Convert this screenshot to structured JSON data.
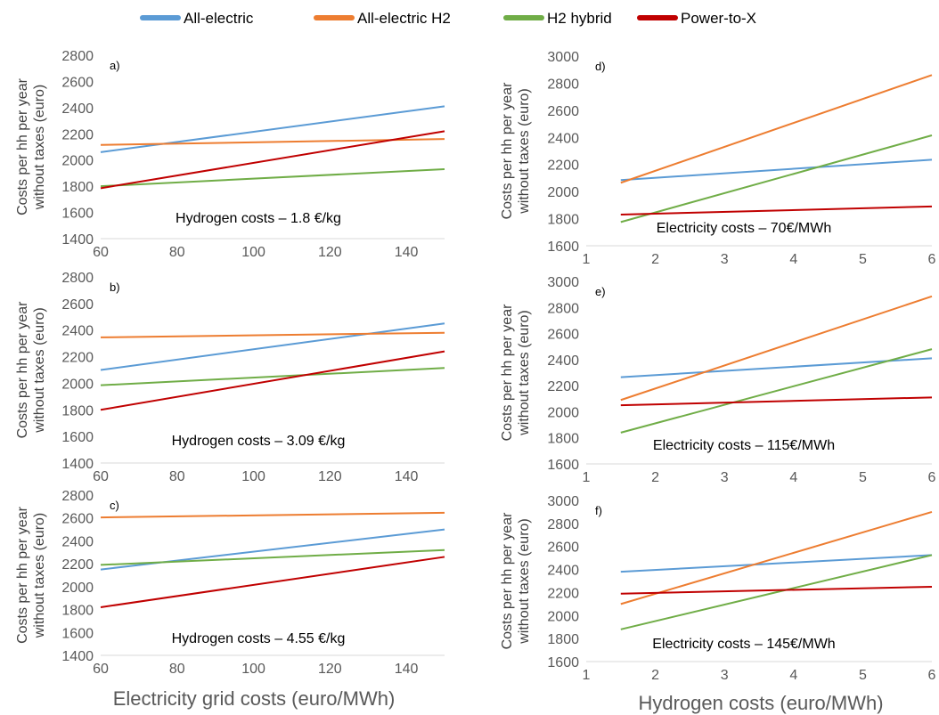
{
  "legend": [
    {
      "label": "All-electric",
      "color": "#5B9BD5"
    },
    {
      "label": "All-electric H2",
      "color": "#ED7D31"
    },
    {
      "label": "H2 hybrid",
      "color": "#70AD47"
    },
    {
      "label": "Power-to-X",
      "color": "#C00000"
    }
  ],
  "left_xlabel": "Electricity grid costs (euro/MWh)",
  "right_xlabel": "Hydrogen costs (euro/MWh)",
  "chart_data": [
    {
      "panel": "a)",
      "type": "line",
      "annotation": "Hydrogen costs – 1.8 €/kg",
      "ylabel": "Costs per hh per year without taxes (euro)",
      "xlim": [
        60,
        150
      ],
      "xticks": [
        60,
        80,
        100,
        120,
        140
      ],
      "ylim": [
        1400,
        2800
      ],
      "yticks": [
        1400,
        1600,
        1800,
        2000,
        2200,
        2400,
        2600,
        2800
      ],
      "x": [
        60,
        150
      ],
      "series": [
        {
          "name": "All-electric",
          "values": [
            2060,
            2410
          ]
        },
        {
          "name": "All-electric H2",
          "values": [
            2115,
            2160
          ]
        },
        {
          "name": "H2 hybrid",
          "values": [
            1800,
            1930
          ]
        },
        {
          "name": "Power-to-X",
          "values": [
            1785,
            2220
          ]
        }
      ]
    },
    {
      "panel": "b)",
      "type": "line",
      "annotation": "Hydrogen costs – 3.09 €/kg",
      "ylabel": "Costs per hh per year without taxes (euro)",
      "xlim": [
        60,
        150
      ],
      "xticks": [
        60,
        80,
        100,
        120,
        140
      ],
      "ylim": [
        1400,
        2800
      ],
      "yticks": [
        1400,
        1600,
        1800,
        2000,
        2200,
        2400,
        2600,
        2800
      ],
      "x": [
        60,
        150
      ],
      "series": [
        {
          "name": "All-electric",
          "values": [
            2100,
            2450
          ]
        },
        {
          "name": "All-electric H2",
          "values": [
            2345,
            2380
          ]
        },
        {
          "name": "H2 hybrid",
          "values": [
            1985,
            2115
          ]
        },
        {
          "name": "Power-to-X",
          "values": [
            1800,
            2240
          ]
        }
      ]
    },
    {
      "panel": "c)",
      "type": "line",
      "annotation": "Hydrogen costs – 4.55 €/kg",
      "ylabel": "Costs per hh per year without taxes (euro)",
      "xlim": [
        60,
        150
      ],
      "xticks": [
        60,
        80,
        100,
        120,
        140
      ],
      "ylim": [
        1400,
        2800
      ],
      "yticks": [
        1400,
        1600,
        1800,
        2000,
        2200,
        2400,
        2600,
        2800
      ],
      "x": [
        60,
        150
      ],
      "series": [
        {
          "name": "All-electric",
          "values": [
            2150,
            2500
          ]
        },
        {
          "name": "All-electric H2",
          "values": [
            2605,
            2645
          ]
        },
        {
          "name": "H2 hybrid",
          "values": [
            2190,
            2320
          ]
        },
        {
          "name": "Power-to-X",
          "values": [
            1820,
            2260
          ]
        }
      ]
    },
    {
      "panel": "d)",
      "type": "line",
      "annotation": "Electricity costs – 70€/MWh",
      "ylabel": "Costs per hh per year without taxes (euro)",
      "xlim": [
        1,
        6
      ],
      "xticks": [
        1,
        2,
        3,
        4,
        5,
        6
      ],
      "ylim": [
        1600,
        3000
      ],
      "yticks": [
        1600,
        1800,
        2000,
        2200,
        2400,
        2600,
        2800,
        3000
      ],
      "x": [
        1.5,
        6
      ],
      "series": [
        {
          "name": "All-electric",
          "values": [
            2085,
            2235
          ]
        },
        {
          "name": "All-electric H2",
          "values": [
            2065,
            2860
          ]
        },
        {
          "name": "H2 hybrid",
          "values": [
            1775,
            2415
          ]
        },
        {
          "name": "Power-to-X",
          "values": [
            1830,
            1890
          ]
        }
      ]
    },
    {
      "panel": "e)",
      "type": "line",
      "annotation": "Electricity costs – 115€/MWh",
      "ylabel": "Costs per hh per year without taxes (euro)",
      "xlim": [
        1,
        6
      ],
      "xticks": [
        1,
        2,
        3,
        4,
        5,
        6
      ],
      "ylim": [
        1600,
        3000
      ],
      "yticks": [
        1600,
        1800,
        2000,
        2200,
        2400,
        2600,
        2800,
        3000
      ],
      "x": [
        1.5,
        6
      ],
      "series": [
        {
          "name": "All-electric",
          "values": [
            2265,
            2410
          ]
        },
        {
          "name": "All-electric H2",
          "values": [
            2090,
            2885
          ]
        },
        {
          "name": "H2 hybrid",
          "values": [
            1840,
            2480
          ]
        },
        {
          "name": "Power-to-X",
          "values": [
            2050,
            2110
          ]
        }
      ]
    },
    {
      "panel": "f)",
      "type": "line",
      "annotation": "Electricity costs – 145€/MWh",
      "ylabel": "Costs per hh per year without taxes (euro)",
      "xlim": [
        1,
        6
      ],
      "xticks": [
        1,
        2,
        3,
        4,
        5,
        6
      ],
      "ylim": [
        1600,
        3000
      ],
      "yticks": [
        1600,
        1800,
        2000,
        2200,
        2400,
        2600,
        2800,
        3000
      ],
      "x": [
        1.5,
        6
      ],
      "series": [
        {
          "name": "All-electric",
          "values": [
            2380,
            2525
          ]
        },
        {
          "name": "All-electric H2",
          "values": [
            2100,
            2900
          ]
        },
        {
          "name": "H2 hybrid",
          "values": [
            1880,
            2525
          ]
        },
        {
          "name": "Power-to-X",
          "values": [
            2190,
            2250
          ]
        }
      ]
    }
  ]
}
